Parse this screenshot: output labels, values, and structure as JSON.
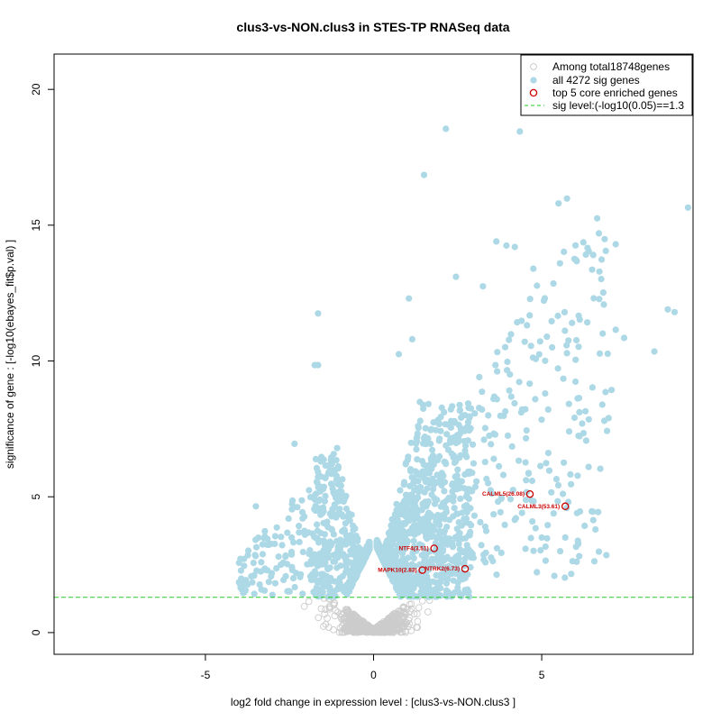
{
  "chart_data": {
    "type": "scatter",
    "title": "clus3-vs-NON.clus3 in STES-TP RNASeq data",
    "xlabel": "log2 fold change in expression level : [clus3-vs-NON.clus3 ]",
    "ylabel": "significance of gene : [-log10(ebayes_fit$p.val) ]",
    "xlim": [
      -9.5,
      9.5
    ],
    "ylim": [
      -0.8,
      21.3
    ],
    "x_ticks": [
      -5,
      0,
      5
    ],
    "y_ticks": [
      0,
      5,
      10,
      15,
      20
    ],
    "x_tick_labels": [
      "-5",
      "0",
      "5"
    ],
    "y_tick_labels": [
      "0",
      "5",
      "10",
      "15",
      "20"
    ],
    "sig_level": 1.3,
    "colors": {
      "nonsig": "#cccccc",
      "sig": "#add8e6",
      "core": "#cc0000",
      "sigline": "#22cc22"
    },
    "legend": {
      "position": "top-right",
      "entries": [
        {
          "label": "Among total18748genes",
          "marker": "open-circle-gray"
        },
        {
          "label": "all 4272 sig genes",
          "marker": "filled-circle-lightblue"
        },
        {
          "label": "top 5 core enriched genes",
          "marker": "open-circle-red"
        },
        {
          "label": "sig level:(-log10(0.05)==1.3",
          "marker": "dashed-line-green"
        }
      ]
    },
    "core_genes": [
      {
        "label": "CALML5(26.08)",
        "x": 4.65,
        "y": 5.1
      },
      {
        "label": "CALML3(53.61)",
        "x": 5.7,
        "y": 4.65
      },
      {
        "label": "NTF4(3.51)",
        "x": 1.8,
        "y": 3.1
      },
      {
        "label": "NTRK2(6.73)",
        "x": 2.72,
        "y": 2.35
      },
      {
        "label": "MAPK10(2.83)",
        "x": 1.45,
        "y": 2.3
      }
    ],
    "highlighted_sig_points": [
      {
        "x": 2.15,
        "y": 18.55
      },
      {
        "x": 4.35,
        "y": 18.45
      },
      {
        "x": 1.5,
        "y": 16.85
      },
      {
        "x": 5.75,
        "y": 15.98
      },
      {
        "x": 5.5,
        "y": 15.8
      },
      {
        "x": 9.35,
        "y": 15.65
      },
      {
        "x": 6.65,
        "y": 15.25
      },
      {
        "x": 6.7,
        "y": 14.7
      },
      {
        "x": 7.2,
        "y": 14.3
      },
      {
        "x": 3.65,
        "y": 14.4
      },
      {
        "x": 3.95,
        "y": 14.25
      },
      {
        "x": 4.2,
        "y": 14.2
      },
      {
        "x": 2.45,
        "y": 13.1
      },
      {
        "x": 4.75,
        "y": 13.4
      },
      {
        "x": 5.35,
        "y": 12.85
      },
      {
        "x": 1.05,
        "y": 12.3
      },
      {
        "x": 8.75,
        "y": 11.9
      },
      {
        "x": 8.95,
        "y": 11.8
      },
      {
        "x": -1.65,
        "y": 11.75
      },
      {
        "x": 8.35,
        "y": 10.35
      },
      {
        "x": 7.2,
        "y": 11.15
      },
      {
        "x": 7.45,
        "y": 10.85
      },
      {
        "x": -1.65,
        "y": 9.85
      },
      {
        "x": -1.75,
        "y": 9.85
      },
      {
        "x": -2.35,
        "y": 6.95
      },
      {
        "x": -3.5,
        "y": 4.65
      },
      {
        "x": -4.0,
        "y": 1.85
      },
      {
        "x": 0.75,
        "y": 10.25
      },
      {
        "x": 1.15,
        "y": 10.8
      },
      {
        "x": 3.25,
        "y": 12.75
      },
      {
        "x": 5.9,
        "y": 11.4
      },
      {
        "x": 6.4,
        "y": 7.85
      },
      {
        "x": 6.3,
        "y": 8.15
      },
      {
        "x": 5.0,
        "y": 3.5
      },
      {
        "x": 5.7,
        "y": 3.5
      },
      {
        "x": 4.2,
        "y": 4.15
      },
      {
        "x": 6.05,
        "y": 4.4
      }
    ]
  }
}
